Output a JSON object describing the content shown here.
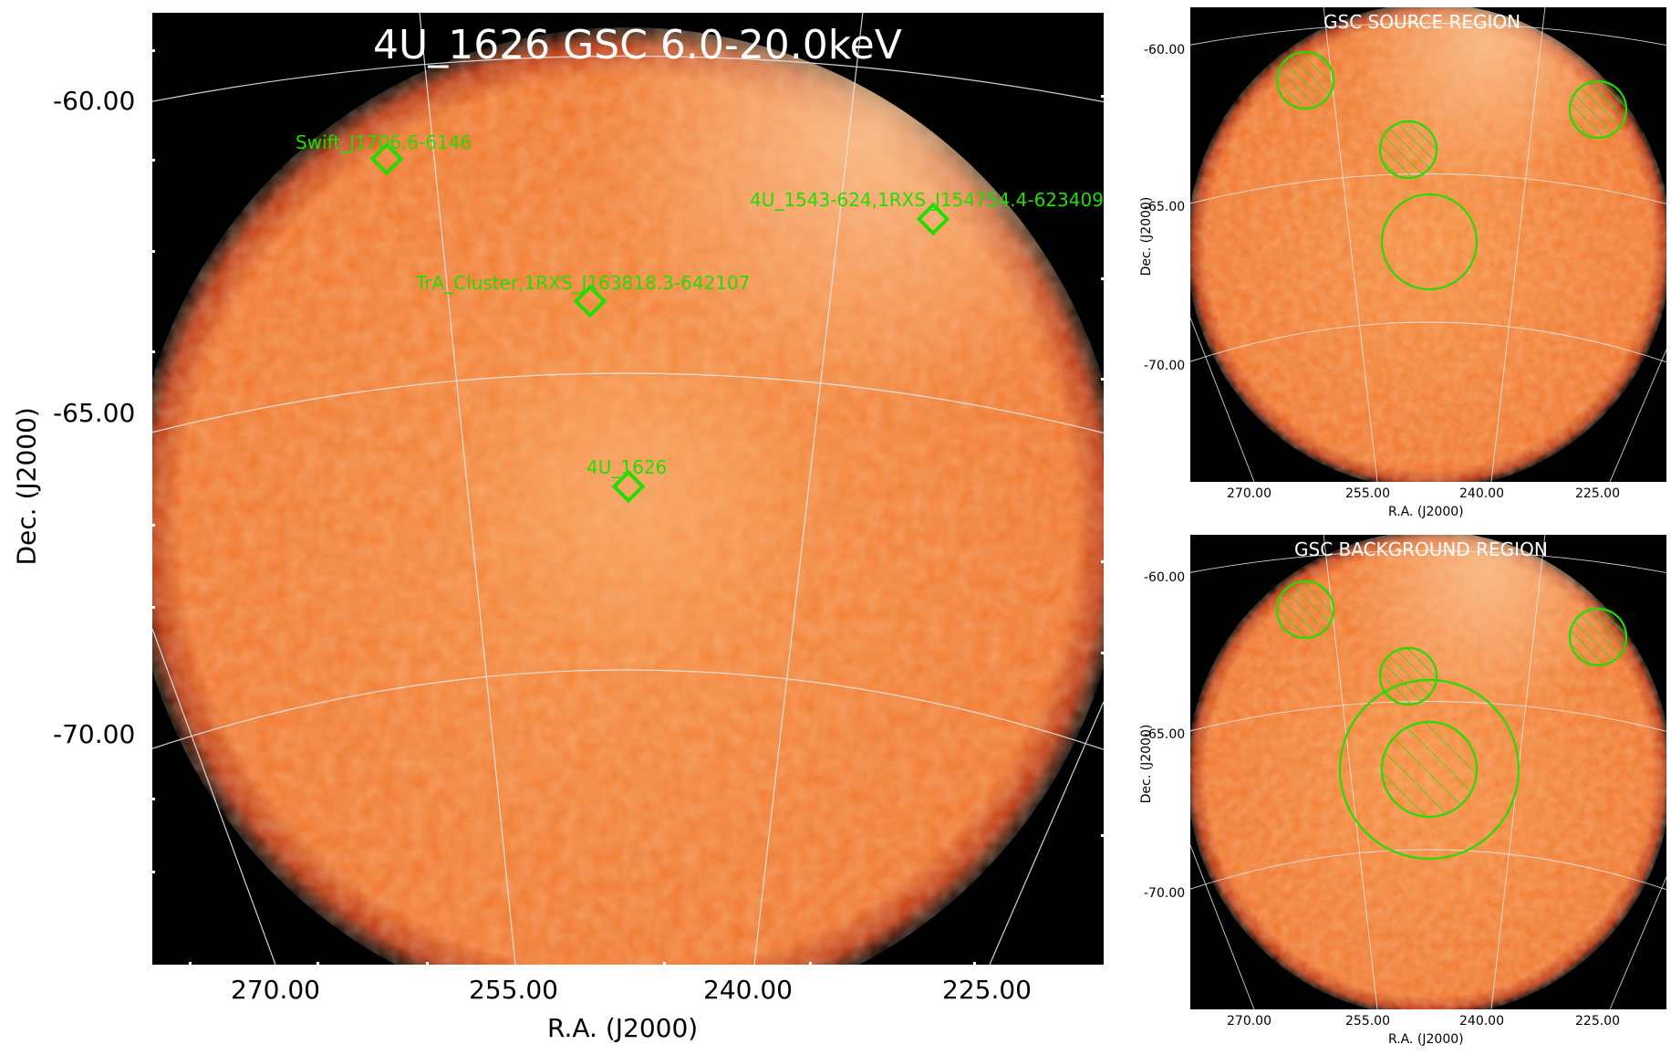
{
  "main": {
    "title": "4U_1626 GSC 6.0-20.0keV",
    "xlabel": "R.A. (J2000)",
    "ylabel": "Dec. (J2000)",
    "x_ticks": [
      "270.00",
      "255.00",
      "240.00",
      "225.00"
    ],
    "y_ticks": [
      "-60.00",
      "-65.00",
      "-70.00"
    ],
    "sources": [
      {
        "label": "Swift_J1706.6-6146"
      },
      {
        "label": "4U_1543-624,1RXS_J154754.4-623409"
      },
      {
        "label": "TrA_Cluster,1RXS_J163818.3-642107"
      },
      {
        "label": "4U_1626"
      }
    ]
  },
  "source_panel": {
    "title": "GSC SOURCE REGION",
    "xlabel": "R.A. (J2000)",
    "ylabel": "Dec. (J2000)",
    "x_ticks": [
      "270.00",
      "255.00",
      "240.00",
      "225.00"
    ],
    "y_ticks": [
      "-60.00",
      "-65.00",
      "-70.00"
    ]
  },
  "background_panel": {
    "title": "GSC BACKGROUND REGION",
    "xlabel": "R.A. (J2000)",
    "ylabel": "Dec. (J2000)",
    "x_ticks": [
      "270.00",
      "255.00",
      "240.00",
      "225.00"
    ],
    "y_ticks": [
      "-60.00",
      "-65.00",
      "-70.00"
    ]
  },
  "colors": {
    "map_fill": "#f07a2c",
    "map_bright": "#f8b57c",
    "background": "#000000",
    "region": "#22dd00",
    "grid": "#e8e8e8",
    "text_overlay": "#ffffff"
  }
}
